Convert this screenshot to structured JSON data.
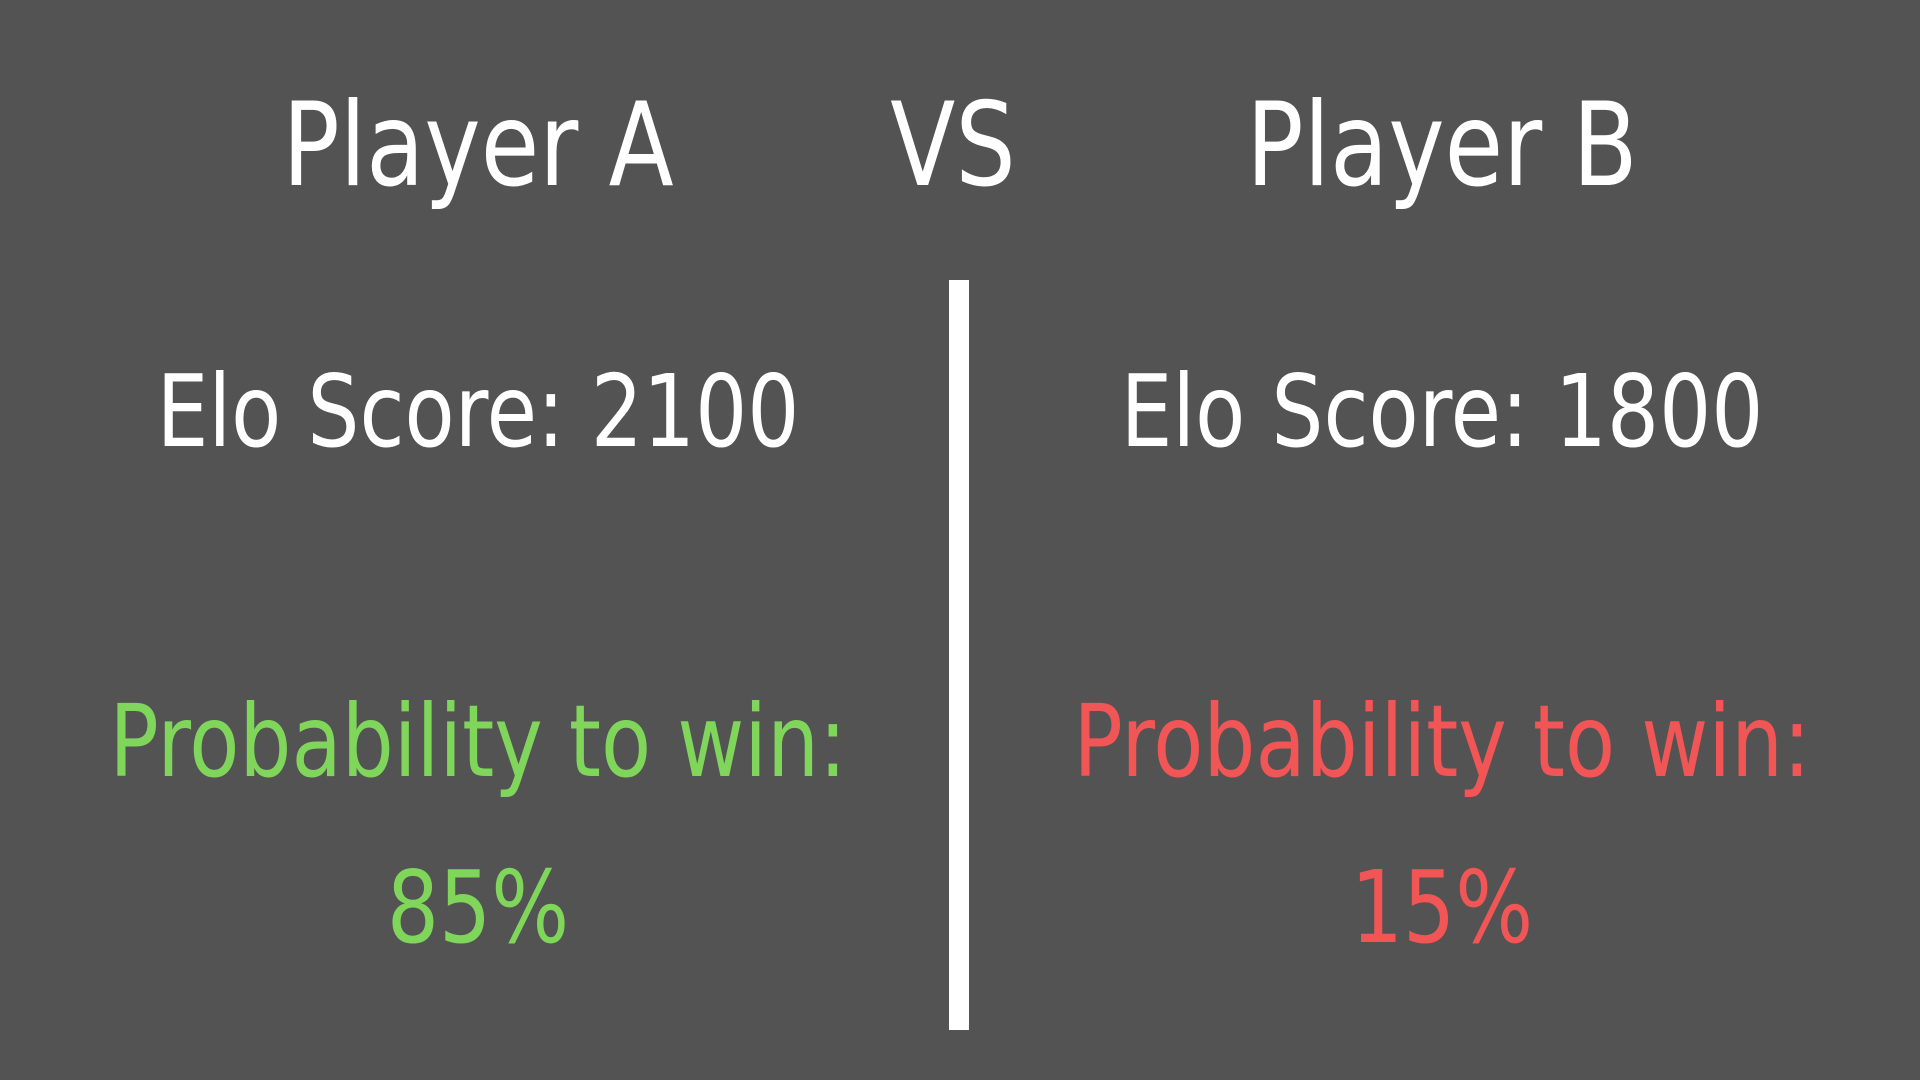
{
  "player_a": {
    "name": "Player A",
    "elo_label": "Elo Score: 2100",
    "probability_label": "Probability to win:",
    "probability_value": "85%",
    "probability": 0.85,
    "color": "#7fd65a"
  },
  "versus": {
    "label": "VS"
  },
  "player_b": {
    "name": "Player B",
    "elo_label": "Elo Score: 1800",
    "probability_label": "Probability to win:",
    "probability_value": "15%",
    "probability": 0.15,
    "color": "#f25555"
  },
  "colors": {
    "background": "#535353",
    "text": "#ffffff",
    "divider": "#ffffff"
  }
}
